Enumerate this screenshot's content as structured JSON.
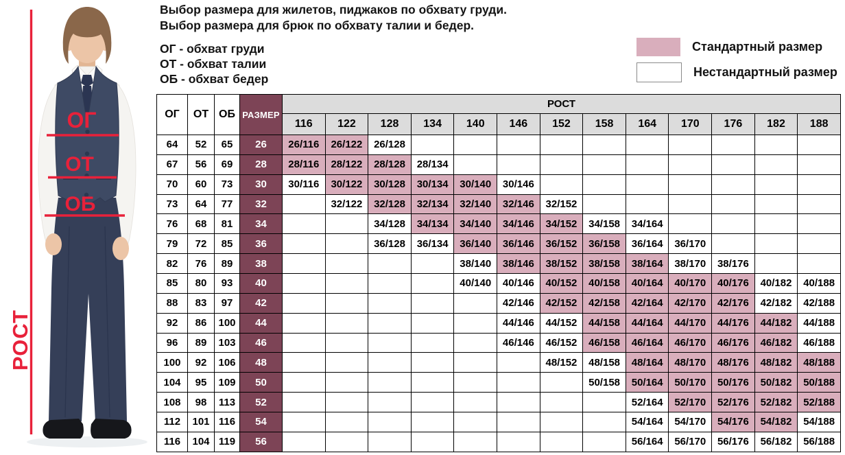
{
  "intro": {
    "title_line1": "Выбор размера для жилетов, пиджаков по обхвату груди.",
    "title_line2": "Выбор размера для брюк по обхвату талии и бедер.",
    "abbreviations": [
      "ОГ - обхват груди",
      "ОТ - обхват талии",
      "ОБ - обхват бедер"
    ]
  },
  "legend": {
    "standard_label": "Стандартный размер",
    "nonstandard_label": "Нестандартный размер"
  },
  "figure": {
    "chest_label": "ОГ",
    "waist_label": "ОТ",
    "hips_label": "ОБ",
    "height_label": "РОСТ"
  },
  "colors": {
    "standard_pink": "#d9aebc",
    "size_maroon": "#7d4456",
    "header_gray": "#dcdcdc",
    "annotation_red": "#e8213a"
  },
  "table": {
    "measure_headers": [
      "ОГ",
      "ОТ",
      "ОБ"
    ],
    "size_header": "РАЗМЕР",
    "rost_header": "РОСТ",
    "heights": [
      116,
      122,
      128,
      134,
      140,
      146,
      152,
      158,
      164,
      170,
      176,
      182,
      188
    ],
    "rows": [
      {
        "og": 64,
        "ot": 52,
        "ob": 65,
        "size": 26,
        "cells": {
          "116": "standard",
          "122": "standard",
          "128": "nonstandard"
        }
      },
      {
        "og": 67,
        "ot": 56,
        "ob": 69,
        "size": 28,
        "cells": {
          "116": "standard",
          "122": "standard",
          "128": "standard",
          "134": "nonstandard"
        }
      },
      {
        "og": 70,
        "ot": 60,
        "ob": 73,
        "size": 30,
        "cells": {
          "116": "nonstandard",
          "122": "standard",
          "128": "standard",
          "134": "standard",
          "140": "standard",
          "146": "nonstandard"
        }
      },
      {
        "og": 73,
        "ot": 64,
        "ob": 77,
        "size": 32,
        "cells": {
          "122": "nonstandard",
          "128": "standard",
          "134": "standard",
          "140": "standard",
          "146": "standard",
          "152": "nonstandard"
        }
      },
      {
        "og": 76,
        "ot": 68,
        "ob": 81,
        "size": 34,
        "cells": {
          "128": "nonstandard",
          "134": "standard",
          "140": "standard",
          "146": "standard",
          "152": "standard",
          "158": "nonstandard",
          "164": "nonstandard"
        }
      },
      {
        "og": 79,
        "ot": 72,
        "ob": 85,
        "size": 36,
        "cells": {
          "128": "nonstandard",
          "134": "nonstandard",
          "140": "standard",
          "146": "standard",
          "152": "standard",
          "158": "standard",
          "164": "nonstandard",
          "170": "nonstandard"
        }
      },
      {
        "og": 82,
        "ot": 76,
        "ob": 89,
        "size": 38,
        "cells": {
          "140": "nonstandard",
          "146": "standard",
          "152": "standard",
          "158": "standard",
          "164": "standard",
          "170": "nonstandard",
          "176": "nonstandard"
        }
      },
      {
        "og": 85,
        "ot": 80,
        "ob": 93,
        "size": 40,
        "cells": {
          "140": "nonstandard",
          "146": "nonstandard",
          "152": "standard",
          "158": "standard",
          "164": "standard",
          "170": "standard",
          "176": "standard",
          "182": "nonstandard",
          "188": "nonstandard"
        }
      },
      {
        "og": 88,
        "ot": 83,
        "ob": 97,
        "size": 42,
        "cells": {
          "146": "nonstandard",
          "152": "standard",
          "158": "standard",
          "164": "standard",
          "170": "standard",
          "176": "standard",
          "182": "nonstandard",
          "188": "nonstandard"
        }
      },
      {
        "og": 92,
        "ot": 86,
        "ob": 100,
        "size": 44,
        "cells": {
          "146": "nonstandard",
          "152": "nonstandard",
          "158": "standard",
          "164": "standard",
          "170": "standard",
          "176": "standard",
          "182": "standard",
          "188": "nonstandard"
        }
      },
      {
        "og": 96,
        "ot": 89,
        "ob": 103,
        "size": 46,
        "cells": {
          "146": "nonstandard",
          "152": "nonstandard",
          "158": "standard",
          "164": "standard",
          "170": "standard",
          "176": "standard",
          "182": "standard",
          "188": "nonstandard"
        }
      },
      {
        "og": 100,
        "ot": 92,
        "ob": 106,
        "size": 48,
        "cells": {
          "152": "nonstandard",
          "158": "nonstandard",
          "164": "standard",
          "170": "standard",
          "176": "standard",
          "182": "standard",
          "188": "standard"
        }
      },
      {
        "og": 104,
        "ot": 95,
        "ob": 109,
        "size": 50,
        "cells": {
          "158": "nonstandard",
          "164": "standard",
          "170": "standard",
          "176": "standard",
          "182": "standard",
          "188": "standard"
        }
      },
      {
        "og": 108,
        "ot": 98,
        "ob": 113,
        "size": 52,
        "cells": {
          "164": "nonstandard",
          "170": "standard",
          "176": "standard",
          "182": "standard",
          "188": "standard"
        }
      },
      {
        "og": 112,
        "ot": 101,
        "ob": 116,
        "size": 54,
        "cells": {
          "164": "nonstandard",
          "170": "nonstandard",
          "176": "standard",
          "182": "standard",
          "188": "nonstandard"
        }
      },
      {
        "og": 116,
        "ot": 104,
        "ob": 119,
        "size": 56,
        "cells": {
          "164": "nonstandard",
          "170": "nonstandard",
          "176": "nonstandard",
          "182": "nonstandard",
          "188": "nonstandard"
        }
      }
    ]
  }
}
